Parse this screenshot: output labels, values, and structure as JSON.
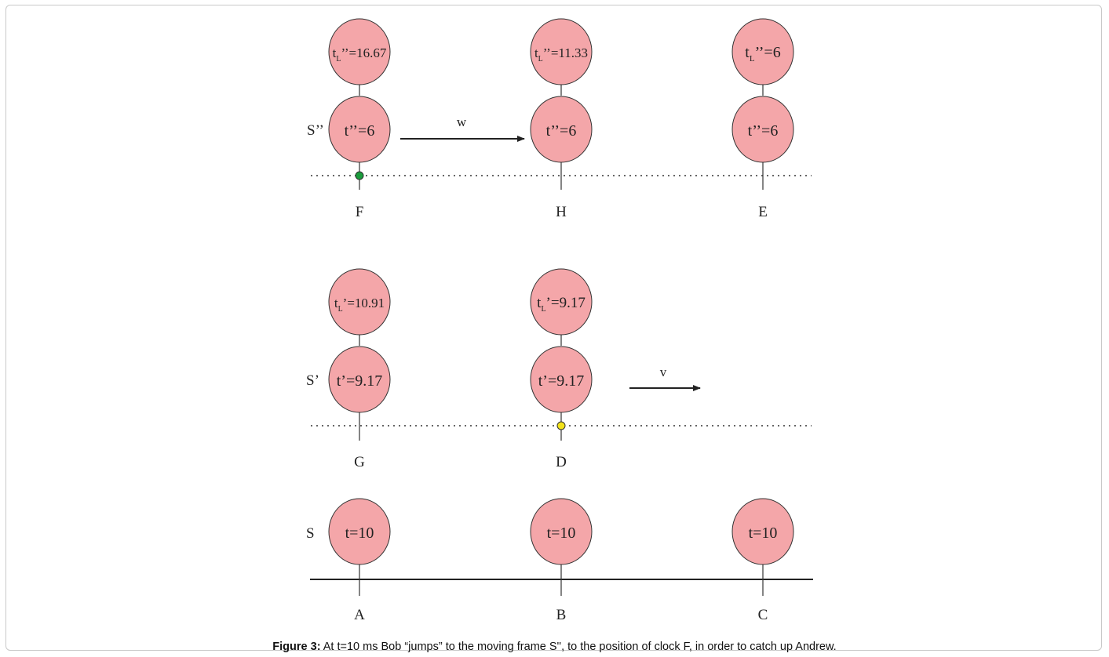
{
  "rows": {
    "s2": {
      "frame_label": "S’’",
      "velocity_label": "w",
      "clocks": [
        {
          "id": "F",
          "top_main": "t",
          "top_sub": "L",
          "top_rest": "’’=16.67",
          "bottom": "t’’=6"
        },
        {
          "id": "H",
          "top_main": "t",
          "top_sub": "L",
          "top_rest": "’’=11.33",
          "bottom": "t’’=6"
        },
        {
          "id": "E",
          "top_main": "t",
          "top_sub": "L",
          "top_rest": "’’=6",
          "bottom": "t’’=6"
        }
      ]
    },
    "s1": {
      "frame_label": "S’",
      "velocity_label": "v",
      "clocks": [
        {
          "id": "G",
          "top_main": "t",
          "top_sub": "L",
          "top_rest": "’=10.91",
          "bottom": "t’=9.17"
        },
        {
          "id": "D",
          "top_main": "t",
          "top_sub": "L",
          "top_rest": "’=9.17",
          "bottom": "t’=9.17"
        }
      ]
    },
    "s0": {
      "frame_label": "S",
      "clocks": [
        {
          "id": "A",
          "bottom": "t=10"
        },
        {
          "id": "B",
          "bottom": "t=10"
        },
        {
          "id": "C",
          "bottom": "t=10"
        }
      ]
    }
  },
  "markers": {
    "green": "#1a9c3c",
    "yellow": "#f2e21a"
  },
  "caption": {
    "label": "Figure 3:",
    "text": " At t=10 ms Bob “jumps” to the moving frame S'', to the position of clock F, in order to catch up Andrew."
  }
}
